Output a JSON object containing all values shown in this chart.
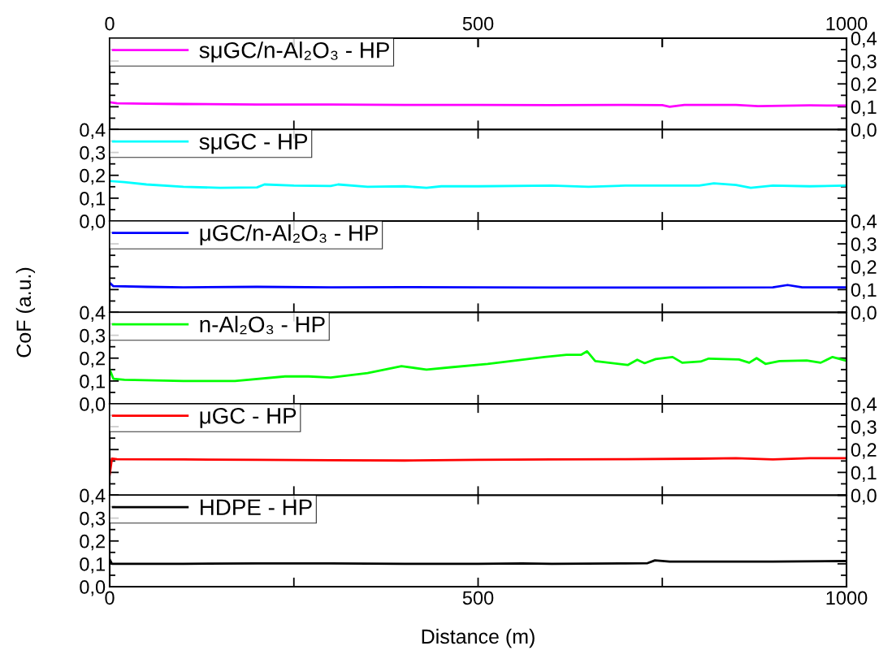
{
  "chart_data": [
    {
      "type": "line",
      "x2lim": [
        0,
        1000
      ],
      "x2ticks": [
        0,
        {
          "value": 250,
          "label": null
        },
        500,
        {
          "value": 750,
          "label": null
        },
        1000
      ],
      "xlim": [
        0,
        1000
      ],
      "xticks": [
        {
          "value": 0,
          "label": null
        },
        {
          "value": 250,
          "label": null
        },
        {
          "value": 500,
          "label": null
        },
        {
          "value": 750,
          "label": null
        },
        {
          "value": 1000,
          "label": null
        }
      ],
      "ylim": [
        0,
        0.4
      ],
      "yticks": [
        {
          "value": 0,
          "label": "0,0"
        },
        {
          "value": 0.1,
          "label": "0,1"
        },
        {
          "value": 0.2,
          "label": "0,2"
        },
        {
          "value": 0.3,
          "label": "0,3"
        },
        {
          "value": 0.4,
          "label": "0,4"
        }
      ],
      "tick_labels": "y",
      "legend": "top left",
      "series": [
        {
          "name": "sμGC/n-Al₂O₃ - HP",
          "color": "#ff00ff",
          "x": [
            0,
            10,
            50,
            100,
            200,
            300,
            400,
            500,
            600,
            700,
            750,
            760,
            780,
            850,
            880,
            950,
            1000
          ],
          "values": [
            0.12,
            0.115,
            0.113,
            0.112,
            0.11,
            0.11,
            0.108,
            0.108,
            0.107,
            0.108,
            0.107,
            0.1,
            0.108,
            0.108,
            0.103,
            0.106,
            0.105
          ]
        }
      ]
    },
    {
      "type": "line",
      "xlim": [
        0,
        1000
      ],
      "xticks": [
        {
          "value": 0,
          "label": null
        },
        {
          "value": 250,
          "label": null
        },
        {
          "value": 500,
          "label": null
        },
        {
          "value": 750,
          "label": null
        },
        {
          "value": 1000,
          "label": null
        }
      ],
      "ylim": [
        0,
        0.4
      ],
      "yticks": [
        {
          "value": 0,
          "label": "0,0"
        },
        {
          "value": 0.1,
          "label": "0,1"
        },
        {
          "value": 0.2,
          "label": "0,2"
        },
        {
          "value": 0.3,
          "label": "0,3"
        },
        {
          "value": 0.4,
          "label": "0,4"
        }
      ],
      "tick_labels": "y",
      "legend": "top left",
      "series": [
        {
          "name": "sμGC - HP",
          "color": "#00ffff",
          "x": [
            0,
            20,
            50,
            100,
            150,
            200,
            210,
            250,
            300,
            310,
            350,
            400,
            430,
            450,
            500,
            600,
            650,
            700,
            800,
            820,
            850,
            870,
            900,
            950,
            1000
          ],
          "values": [
            0.175,
            0.17,
            0.16,
            0.15,
            0.145,
            0.147,
            0.16,
            0.155,
            0.153,
            0.16,
            0.15,
            0.152,
            0.145,
            0.152,
            0.152,
            0.155,
            0.15,
            0.155,
            0.155,
            0.165,
            0.158,
            0.145,
            0.155,
            0.152,
            0.155
          ]
        }
      ]
    },
    {
      "type": "line",
      "xlim": [
        0,
        1000
      ],
      "xticks": [
        {
          "value": 0,
          "label": null
        },
        {
          "value": 250,
          "label": null
        },
        {
          "value": 500,
          "label": null
        },
        {
          "value": 750,
          "label": null
        },
        {
          "value": 1000,
          "label": null
        }
      ],
      "ylim": [
        0,
        0.4
      ],
      "yticks": [
        {
          "value": 0,
          "label": "0,0"
        },
        {
          "value": 0.1,
          "label": "0,1"
        },
        {
          "value": 0.2,
          "label": "0,2"
        },
        {
          "value": 0.3,
          "label": "0,3"
        },
        {
          "value": 0.4,
          "label": "0,4"
        }
      ],
      "tick_labels": "y",
      "legend": "top left",
      "series": [
        {
          "name": "μGC/n-Al₂O₃ - HP",
          "color": "#0000ff",
          "x": [
            0,
            5,
            50,
            100,
            200,
            300,
            400,
            500,
            600,
            700,
            800,
            900,
            920,
            940,
            1000
          ],
          "values": [
            0.13,
            0.115,
            0.112,
            0.11,
            0.112,
            0.11,
            0.111,
            0.11,
            0.109,
            0.109,
            0.109,
            0.11,
            0.12,
            0.11,
            0.11
          ]
        }
      ]
    },
    {
      "type": "line",
      "xlim": [
        0,
        1000
      ],
      "xticks": [
        {
          "value": 0,
          "label": null
        },
        {
          "value": 250,
          "label": null
        },
        {
          "value": 500,
          "label": null
        },
        {
          "value": 750,
          "label": null
        },
        {
          "value": 1000,
          "label": null
        }
      ],
      "ylim": [
        0,
        0.4
      ],
      "yticks": [
        {
          "value": 0,
          "label": "0,0"
        },
        {
          "value": 0.1,
          "label": "0,1"
        },
        {
          "value": 0.2,
          "label": "0,2"
        },
        {
          "value": 0.3,
          "label": "0,3"
        },
        {
          "value": 0.4,
          "label": "0,4"
        }
      ],
      "tick_labels": "y",
      "legend": "top left",
      "series": [
        {
          "name": "n-Al₂O₃ - HP",
          "color": "#00ff00",
          "x": [
            0,
            5,
            20,
            100,
            170,
            238,
            270,
            300,
            350,
            396,
            430,
            463,
            513,
            590,
            620,
            640,
            648,
            659,
            703,
            716,
            726,
            741,
            764,
            777,
            802,
            813,
            854,
            868,
            878,
            890,
            909,
            946,
            965,
            981,
            998
          ],
          "values": [
            0.15,
            0.11,
            0.105,
            0.1,
            0.1,
            0.12,
            0.12,
            0.115,
            0.135,
            0.165,
            0.15,
            0.16,
            0.175,
            0.205,
            0.215,
            0.215,
            0.23,
            0.187,
            0.17,
            0.193,
            0.178,
            0.196,
            0.205,
            0.18,
            0.185,
            0.198,
            0.194,
            0.18,
            0.2,
            0.175,
            0.187,
            0.19,
            0.18,
            0.205,
            0.19
          ]
        }
      ]
    },
    {
      "type": "line",
      "xlim": [
        0,
        1000
      ],
      "xticks": [
        {
          "value": 0,
          "label": null
        },
        {
          "value": 250,
          "label": null
        },
        {
          "value": 500,
          "label": null
        },
        {
          "value": 750,
          "label": null
        },
        {
          "value": 1000,
          "label": null
        }
      ],
      "ylim": [
        0,
        0.4
      ],
      "yticks": [
        {
          "value": 0,
          "label": "0,0"
        },
        {
          "value": 0.1,
          "label": "0,1"
        },
        {
          "value": 0.2,
          "label": "0,2"
        },
        {
          "value": 0.3,
          "label": "0,3"
        },
        {
          "value": 0.4,
          "label": "0,4"
        }
      ],
      "tick_labels": "y",
      "legend": "top left",
      "series": [
        {
          "name": "μGC - HP",
          "color": "#ff0000",
          "x": [
            0,
            3,
            10,
            100,
            200,
            300,
            400,
            500,
            600,
            700,
            800,
            850,
            900,
            950,
            1000
          ],
          "values": [
            0.09,
            0.16,
            0.158,
            0.157,
            0.155,
            0.153,
            0.152,
            0.155,
            0.157,
            0.158,
            0.16,
            0.162,
            0.157,
            0.162,
            0.162
          ]
        }
      ]
    },
    {
      "type": "line",
      "xlim": [
        0,
        1000
      ],
      "xticks": [
        0,
        {
          "value": 250,
          "label": null
        },
        500,
        {
          "value": 750,
          "label": null
        },
        1000
      ],
      "ylim": [
        0,
        0.4
      ],
      "yticks": [
        {
          "value": 0,
          "label": "0,0"
        },
        {
          "value": 0.1,
          "label": "0,1"
        },
        {
          "value": 0.2,
          "label": "0,2"
        },
        {
          "value": 0.3,
          "label": "0,3"
        },
        {
          "value": 0.4,
          "label": "0,4"
        }
      ],
      "legend": "top left",
      "xlabel": "Distance (m)",
      "ylabel": "CoF (a.u.)",
      "series": [
        {
          "name": "HDPE - HP",
          "color": "#000000",
          "x": [
            0,
            3,
            100,
            200,
            300,
            400,
            500,
            560,
            600,
            700,
            730,
            740,
            760,
            800,
            900,
            1000
          ],
          "values": [
            0.12,
            0.1,
            0.1,
            0.102,
            0.102,
            0.1,
            0.1,
            0.102,
            0.1,
            0.102,
            0.103,
            0.115,
            0.11,
            0.11,
            0.11,
            0.112
          ]
        }
      ]
    }
  ]
}
